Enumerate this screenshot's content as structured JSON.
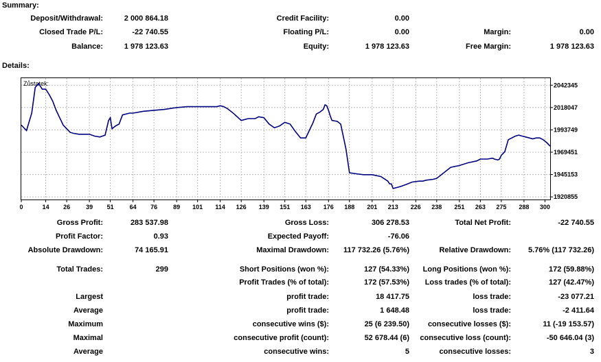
{
  "summary": {
    "title": "Summary:",
    "rows": [
      [
        {
          "label": "Deposit/Withdrawal:",
          "value": "2 000 864.18"
        },
        {
          "label": "Credit Facility:",
          "value": "0.00"
        },
        {
          "label": "",
          "value": ""
        }
      ],
      [
        {
          "label": "Closed Trade P/L:",
          "value": "-22 740.55"
        },
        {
          "label": "Floating P/L:",
          "value": "0.00"
        },
        {
          "label": "Margin:",
          "value": "0.00"
        }
      ],
      [
        {
          "label": "Balance:",
          "value": "1 978 123.63"
        },
        {
          "label": "Equity:",
          "value": "1 978 123.63"
        },
        {
          "label": "Free Margin:",
          "value": "1 978 123.63"
        }
      ]
    ]
  },
  "details": {
    "title": "Details:"
  },
  "chart_data": {
    "type": "line",
    "title": "Zůstatek:",
    "x_ticks": [
      "0",
      "14",
      "26",
      "39",
      "51",
      "64",
      "76",
      "89",
      "101",
      "114",
      "126",
      "139",
      "151",
      "163",
      "176",
      "188",
      "201",
      "213",
      "226",
      "238",
      "251",
      "263",
      "275",
      "288",
      "300"
    ],
    "y_ticks": [
      "2042345",
      "2018047",
      "1993749",
      "1969451",
      "1945153",
      "1920855"
    ],
    "xlim": [
      0,
      303
    ],
    "ylim": [
      1918000,
      2050000
    ],
    "grid": true,
    "line_color": "#000080",
    "series": [
      {
        "x": [
          0,
          3,
          6,
          8,
          10,
          12,
          14,
          16,
          18,
          20,
          22,
          24,
          26,
          28,
          30,
          33,
          36,
          39,
          42,
          45,
          48,
          50,
          51,
          52,
          54,
          56,
          58,
          62,
          64,
          70,
          76,
          82,
          89,
          95,
          101,
          108,
          112,
          114,
          116,
          118,
          120,
          122,
          126,
          130,
          134,
          136,
          139,
          142,
          145,
          148,
          151,
          154,
          157,
          160,
          163,
          165,
          167,
          169,
          171,
          173,
          174,
          175,
          176,
          177,
          178,
          181,
          183,
          186,
          188,
          192,
          196,
          201,
          206,
          210,
          211,
          212,
          213,
          215,
          217,
          220,
          224,
          228,
          230,
          232,
          236,
          238,
          242,
          246,
          251,
          256,
          261,
          263,
          267,
          270,
          271,
          273,
          274,
          275,
          277,
          279,
          281,
          283,
          285,
          287,
          289,
          291,
          293,
          295,
          297,
          299,
          301,
          303
        ],
        "y": [
          1999000,
          1993000,
          2012000,
          2040000,
          2044000,
          2038000,
          2038000,
          2032000,
          2025000,
          2015000,
          2007000,
          1999000,
          1995000,
          1991000,
          1990000,
          1989000,
          1989000,
          1989000,
          1987000,
          1986000,
          1988000,
          2004000,
          2007000,
          1995000,
          1998000,
          2000000,
          2010000,
          2012000,
          2012000,
          2014000,
          2015000,
          2016000,
          2018000,
          2019000,
          2019000,
          2019000,
          2019000,
          2020000,
          2019000,
          2017000,
          2014000,
          2011000,
          2004000,
          2006000,
          2006000,
          2008000,
          2007000,
          2000000,
          1996000,
          1998000,
          2002000,
          2000000,
          1992000,
          1985000,
          1985000,
          1993000,
          2001000,
          2011000,
          2013000,
          2016000,
          2021000,
          2020000,
          2015000,
          2009000,
          2004000,
          2003000,
          2000000,
          1973000,
          1947000,
          1946000,
          1945000,
          1945000,
          1943000,
          1938000,
          1935000,
          1935000,
          1930000,
          1931000,
          1932000,
          1934000,
          1937000,
          1938000,
          1938000,
          1939000,
          1940000,
          1941000,
          1947000,
          1953000,
          1955000,
          1958000,
          1960000,
          1962000,
          1962000,
          1963000,
          1962000,
          1961000,
          1962000,
          1966000,
          1970000,
          1983000,
          1985000,
          1987000,
          1988000,
          1987000,
          1986000,
          1985000,
          1984000,
          1985000,
          1985000,
          1983000,
          1980000,
          1976000
        ]
      }
    ]
  },
  "stats": {
    "gross_profit_label": "Gross Profit:",
    "gross_profit_value": "283 537.98",
    "gross_loss_label": "Gross Loss:",
    "gross_loss_value": "306 278.53",
    "total_net_profit_label": "Total Net Profit:",
    "total_net_profit_value": "-22 740.55",
    "profit_factor_label": "Profit Factor:",
    "profit_factor_value": "0.93",
    "expected_payoff_label": "Expected Payoff:",
    "expected_payoff_value": "-76.06",
    "absolute_drawdown_label": "Absolute Drawdown:",
    "absolute_drawdown_value": "74 165.91",
    "maximal_drawdown_label": "Maximal Drawdown:",
    "maximal_drawdown_value": "117 732.26 (5.76%)",
    "relative_drawdown_label": "Relative Drawdown:",
    "relative_drawdown_value": "5.76% (117 732.26)",
    "total_trades_label": "Total Trades:",
    "total_trades_value": "299",
    "short_positions_label": "Short Positions (won %):",
    "short_positions_value": "127 (54.33%)",
    "long_positions_label": "Long Positions (won %):",
    "long_positions_value": "172 (59.88%)",
    "profit_trades_label": "Profit Trades (% of total):",
    "profit_trades_value": "172 (57.53%)",
    "loss_trades_label": "Loss trades (% of total):",
    "loss_trades_value": "127 (42.47%)",
    "largest_label": "Largest",
    "largest_profit_label": "profit trade:",
    "largest_profit_value": "18 417.75",
    "largest_loss_label": "loss trade:",
    "largest_loss_value": "-23 077.21",
    "average_label": "Average",
    "average_profit_label": "profit trade:",
    "average_profit_value": "1 648.48",
    "average_loss_label": "loss trade:",
    "average_loss_value": "-2 411.64",
    "maximum_label": "Maximum",
    "max_wins_label": "consecutive wins ($):",
    "max_wins_value": "25 (6 239.50)",
    "max_losses_label": "consecutive losses ($):",
    "max_losses_value": "11 (-19 153.57)",
    "maximal_label": "Maximal",
    "maximal_profit_label": "consecutive profit (count):",
    "maximal_profit_value": "52 678.44 (6)",
    "maximal_loss_label": "consecutive loss (count):",
    "maximal_loss_value": "-50 646.04 (3)",
    "average2_label": "Average",
    "avg_wins_label": "consecutive wins:",
    "avg_wins_value": "5",
    "avg_losses_label": "consecutive losses:",
    "avg_losses_value": "3"
  }
}
